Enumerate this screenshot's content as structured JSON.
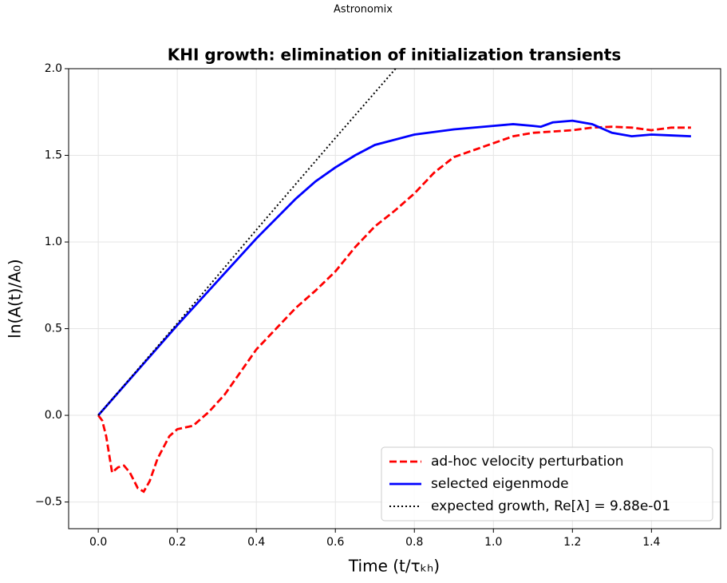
{
  "header": {
    "app": "Astronomix"
  },
  "chart_data": {
    "type": "line",
    "title": "KHI growth: elimination of initialization transients",
    "xlabel": "Time (t/τₖₕ)",
    "ylabel": "ln(A(t)/A₀)",
    "xlim": [
      -0.075,
      1.575
    ],
    "ylim": [
      -0.654,
      2.0
    ],
    "xticks": [
      {
        "value": 0,
        "label": "0.0"
      },
      0.2,
      0.4,
      0.6,
      0.8,
      {
        "value": 1,
        "label": "1.0"
      },
      1.2,
      1.4
    ],
    "yticks": [
      {
        "value": -0.5,
        "label": "−0.5"
      },
      {
        "value": 0,
        "label": "0.0"
      },
      0.5,
      {
        "value": 1,
        "label": "1.0"
      },
      1.5,
      {
        "value": 2,
        "label": "2.0"
      }
    ],
    "grid": true,
    "legend": "lower right",
    "series": [
      {
        "name": "ad-hoc velocity perturbation",
        "color": "#ff0000",
        "style": "dashed",
        "x": [
          0,
          0.01,
          0.02,
          0.035,
          0.05,
          0.065,
          0.08,
          0.1,
          0.115,
          0.13,
          0.15,
          0.18,
          0.2,
          0.24,
          0.28,
          0.32,
          0.36,
          0.4,
          0.45,
          0.5,
          0.55,
          0.6,
          0.65,
          0.7,
          0.75,
          0.8,
          0.85,
          0.9,
          0.95,
          1.0,
          1.05,
          1.1,
          1.2,
          1.25,
          1.3,
          1.35,
          1.4,
          1.45,
          1.5
        ],
        "values": [
          0,
          -0.03,
          -0.12,
          -0.33,
          -0.3,
          -0.29,
          -0.33,
          -0.42,
          -0.44,
          -0.38,
          -0.25,
          -0.12,
          -0.08,
          -0.06,
          0.02,
          0.12,
          0.25,
          0.38,
          0.5,
          0.62,
          0.72,
          0.83,
          0.97,
          1.09,
          1.18,
          1.28,
          1.4,
          1.49,
          1.53,
          1.57,
          1.61,
          1.63,
          1.645,
          1.66,
          1.665,
          1.66,
          1.645,
          1.66,
          1.66
        ]
      },
      {
        "name": "selected eigenmode",
        "color": "#0000ff",
        "style": "solid",
        "x": [
          0,
          0.05,
          0.1,
          0.2,
          0.3,
          0.4,
          0.5,
          0.55,
          0.6,
          0.65,
          0.7,
          0.8,
          0.9,
          1.0,
          1.05,
          1.1,
          1.12,
          1.15,
          1.2,
          1.25,
          1.3,
          1.35,
          1.4,
          1.45,
          1.5
        ],
        "values": [
          0,
          0.13,
          0.26,
          0.52,
          0.77,
          1.02,
          1.25,
          1.35,
          1.43,
          1.5,
          1.56,
          1.62,
          1.65,
          1.67,
          1.68,
          1.67,
          1.665,
          1.69,
          1.7,
          1.68,
          1.63,
          1.61,
          1.62,
          1.615,
          1.61
        ]
      },
      {
        "name": "expected growth, Re[λ] = 9.88e-01",
        "color": "#000000",
        "style": "dotted",
        "x": [
          0,
          0.2,
          0.4,
          0.6,
          0.76
        ],
        "values": [
          0,
          0.53,
          1.07,
          1.6,
          2.02
        ]
      }
    ]
  }
}
